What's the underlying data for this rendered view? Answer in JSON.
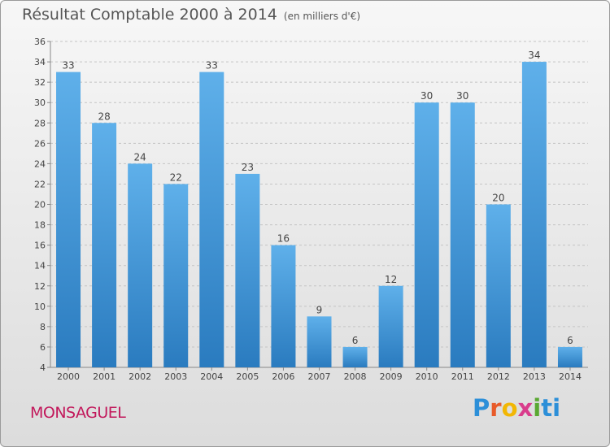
{
  "header": {
    "title": "Résultat Comptable 2000 à 2014",
    "unit": "(en milliers d'€)"
  },
  "footer": {
    "commune": "MONSAGUEL",
    "logo": "Proxiti"
  },
  "colors": {
    "bar_light": "#5fb0ea",
    "bar_dark": "#2a7bbf",
    "logo_letters": [
      "#2c8fd8",
      "#e85b2a",
      "#f2b705",
      "#d93c8c",
      "#5aa832",
      "#2c8fd8"
    ]
  },
  "chart_data": {
    "type": "bar",
    "title": "Résultat Comptable 2000 à 2014",
    "subtitle": "(en milliers d'€)",
    "xlabel": "",
    "ylabel": "",
    "categories": [
      "2000",
      "2001",
      "2002",
      "2003",
      "2004",
      "2005",
      "2006",
      "2007",
      "2008",
      "2009",
      "2010",
      "2011",
      "2012",
      "2013",
      "2014"
    ],
    "values": [
      33,
      28,
      24,
      22,
      33,
      23,
      16,
      9,
      6,
      12,
      30,
      30,
      20,
      34,
      6
    ],
    "ylim": [
      4,
      36
    ],
    "yticks": [
      4,
      6,
      8,
      10,
      12,
      14,
      16,
      18,
      20,
      22,
      24,
      26,
      28,
      30,
      32,
      34,
      36
    ],
    "grid": true,
    "legend": "none"
  }
}
